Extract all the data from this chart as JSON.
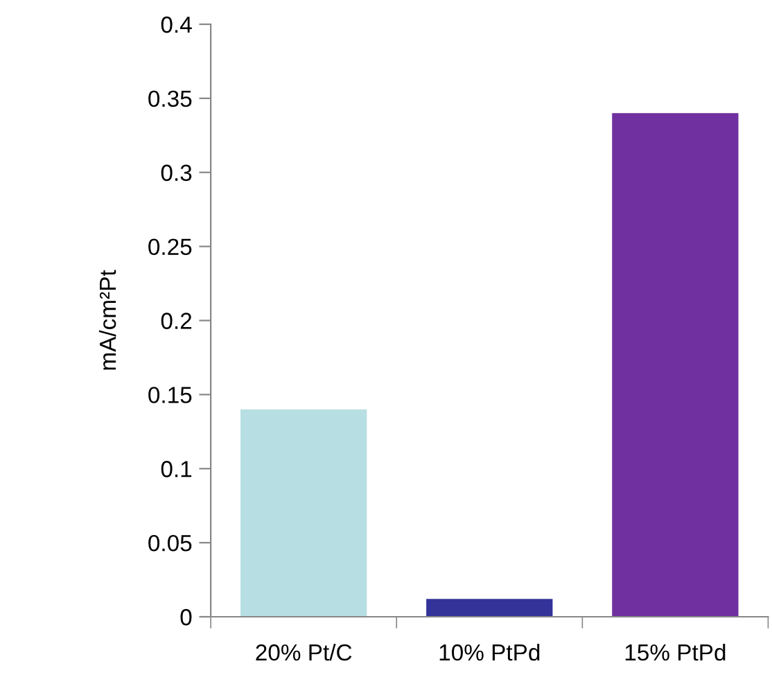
{
  "chart_data": {
    "type": "bar",
    "ylabel": "mA/cm²Pt",
    "categories": [
      "20% Pt/C",
      "10% PtPd",
      "15% PtPd"
    ],
    "values": [
      0.14,
      0.012,
      0.34
    ],
    "colors": [
      "#b7dfe3",
      "#333399",
      "#7030a0"
    ],
    "ylim": [
      0,
      0.4
    ],
    "yticks": [
      0,
      0.05,
      0.1,
      0.15,
      0.2,
      0.25,
      0.3,
      0.35,
      0.4
    ],
    "grid": false,
    "legend": false
  }
}
